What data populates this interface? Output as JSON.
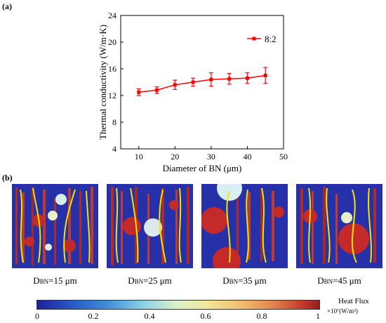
{
  "panel_labels": {
    "a": "(a)",
    "b": "(b)"
  },
  "chart_data": {
    "type": "line",
    "xlabel": "Diameter of BN (μm)",
    "ylabel": "Thermal conductivity (W/m·K)",
    "xlim": [
      5,
      50
    ],
    "ylim": [
      4,
      24
    ],
    "xticks": [
      10,
      20,
      30,
      40,
      50
    ],
    "yticks": [
      4,
      8,
      12,
      16,
      20,
      24
    ],
    "legend_position": "top-right",
    "series": [
      {
        "name": "8:2",
        "color": "#ff0000",
        "x": [
          10,
          15,
          20,
          25,
          30,
          35,
          40,
          45
        ],
        "y": [
          12.5,
          12.8,
          13.6,
          14.0,
          14.4,
          14.5,
          14.6,
          15.0
        ],
        "error": [
          0.5,
          0.5,
          0.7,
          0.6,
          1.0,
          0.8,
          0.8,
          1.2
        ]
      }
    ]
  },
  "simulations": [
    {
      "prefix": "D",
      "sub": "BN",
      "value": "=15 μm"
    },
    {
      "prefix": "D",
      "sub": "BN",
      "value": "=25 μm"
    },
    {
      "prefix": "D",
      "sub": "BN",
      "value": "=35 μm"
    },
    {
      "prefix": "D",
      "sub": "BN",
      "value": "=45 μm"
    }
  ],
  "colorbar": {
    "title": "Heat Flux",
    "unit": "×10⁷(W/m²)",
    "ticks": [
      "0",
      "0.2",
      "0.4",
      "0.6",
      "0.8",
      "1"
    ]
  }
}
